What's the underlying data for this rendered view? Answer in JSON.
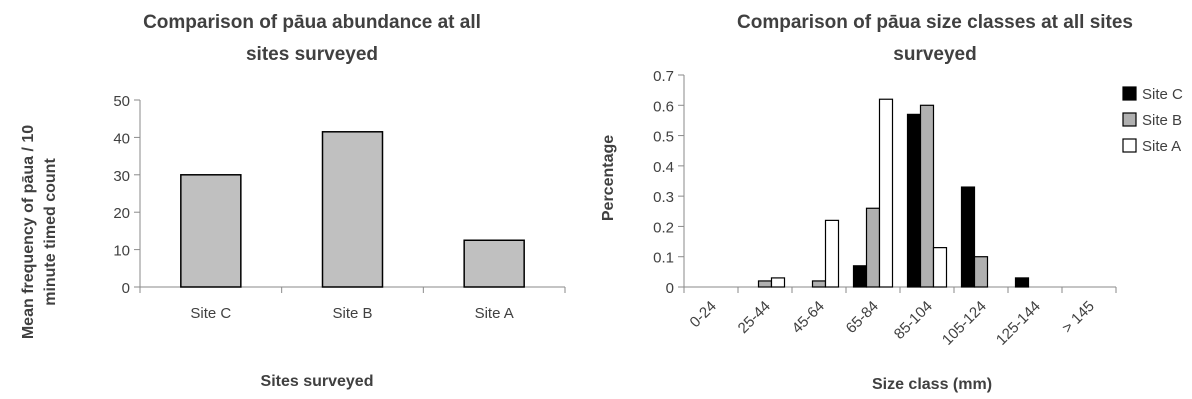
{
  "chart_data": [
    {
      "type": "bar",
      "title_lines": [
        "Comparison of pāua abundance at all",
        "sites surveyed"
      ],
      "xlabel": "Sites surveyed",
      "ylabel_lines": [
        "Mean frequency of pāua / 10",
        "minute timed count"
      ],
      "categories": [
        "Site C",
        "Site B",
        "Site A"
      ],
      "values": [
        30,
        41.5,
        12.5
      ],
      "ylim": [
        0,
        50
      ],
      "yticks": [
        0,
        10,
        20,
        30,
        40,
        50
      ],
      "bar_color": "#c0c0c0",
      "grid": false
    },
    {
      "type": "bar",
      "title_lines": [
        "Comparison of pāua size classes at all sites",
        "surveyed"
      ],
      "xlabel": "Size class (mm)",
      "ylabel": "Percentage",
      "categories": [
        "0-24",
        "25-44",
        "45-64",
        "65-84",
        "85-104",
        "105-124",
        "125-144",
        "> 145"
      ],
      "ylim": [
        0,
        0.7
      ],
      "yticks": [
        "0",
        "0.1",
        "0.2",
        "0.3",
        "0.4",
        "0.5",
        "0.6",
        "0.7"
      ],
      "legend_position": "right",
      "grid": false,
      "series": [
        {
          "name": "Site C",
          "color": "#000000",
          "values": [
            0,
            0,
            0,
            0.07,
            0.57,
            0.33,
            0.03,
            0
          ]
        },
        {
          "name": "Site B",
          "color": "#b0b0b0",
          "values": [
            0,
            0.02,
            0.02,
            0.26,
            0.6,
            0.1,
            0,
            0
          ]
        },
        {
          "name": "Site A",
          "color": "#ffffff",
          "values": [
            0,
            0.03,
            0.22,
            0.62,
            0.13,
            0,
            0,
            0
          ]
        }
      ]
    }
  ]
}
